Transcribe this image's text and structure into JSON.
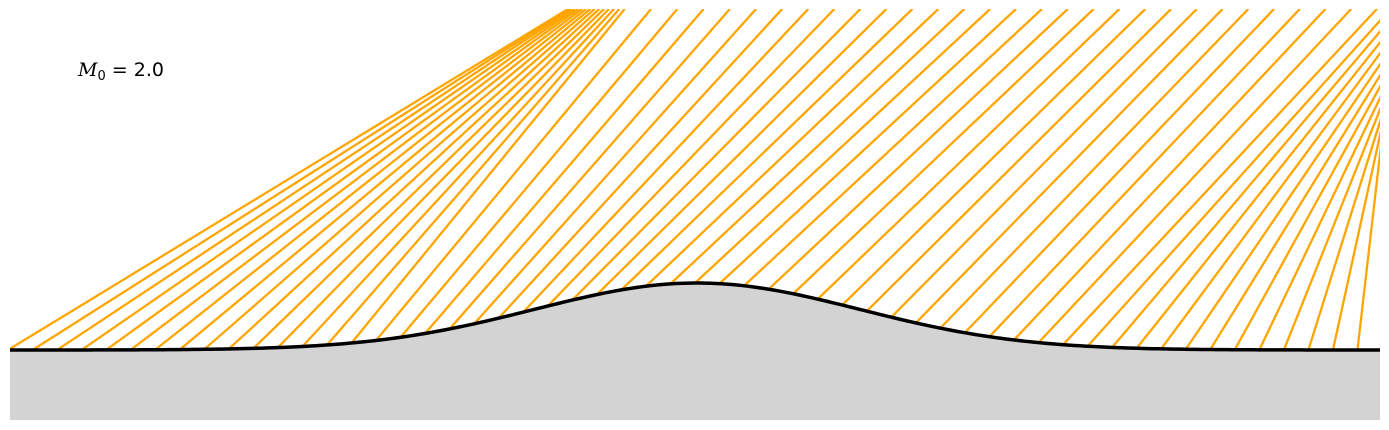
{
  "annotation": {
    "symbol": "M",
    "subscript": "0",
    "equals": " = ",
    "value": "2.0"
  },
  "colors": {
    "characteristic": "#FFA500",
    "wall": "#000000",
    "solid": "#D3D3D3",
    "background": "#FFFFFF"
  },
  "flow": {
    "mach": 2.0,
    "characteristic_count": 57
  }
}
